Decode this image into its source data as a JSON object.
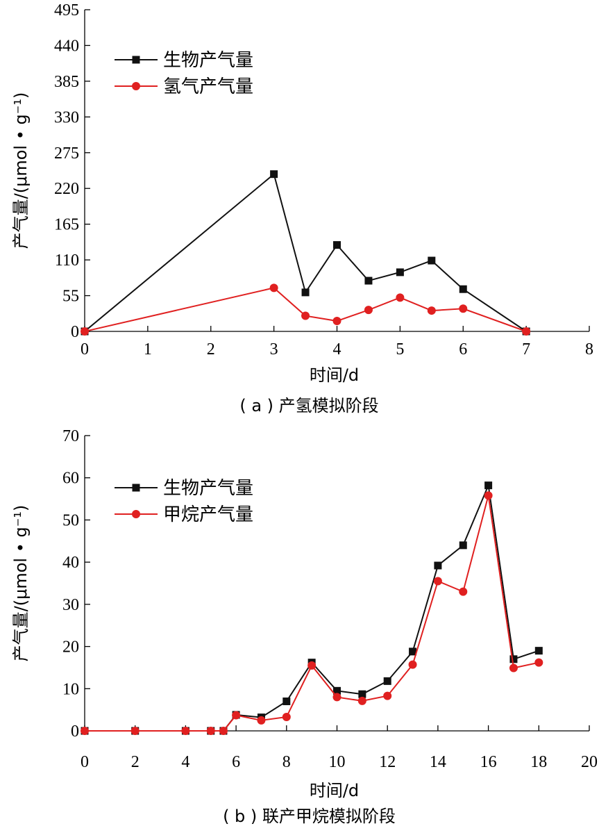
{
  "chart_data": [
    {
      "type": "line",
      "caption": "( a ) 产氢模拟阶段",
      "xlabel": "时间/d",
      "ylabel": "产气量/(μmol • g⁻¹)",
      "xlim": [
        0,
        8
      ],
      "ylim": [
        0,
        495
      ],
      "xticks": [
        0,
        1,
        2,
        3,
        4,
        5,
        6,
        7,
        8
      ],
      "yticks": [
        0,
        55,
        110,
        165,
        220,
        275,
        330,
        385,
        440,
        495
      ],
      "legend_position": "top-left",
      "series": [
        {
          "name": "生物产气量",
          "color": "#111111",
          "marker": "square",
          "x": [
            0,
            3,
            3.5,
            4,
            4.5,
            5,
            5.5,
            6,
            7
          ],
          "y": [
            0,
            242,
            60,
            133,
            78,
            91,
            109,
            65,
            0
          ]
        },
        {
          "name": "氢气产气量",
          "color": "#e02020",
          "marker": "circle",
          "x": [
            0,
            3,
            3.5,
            4,
            4.5,
            5,
            5.5,
            6,
            7
          ],
          "y": [
            0,
            67,
            24,
            16,
            33,
            52,
            32,
            35,
            0
          ]
        }
      ]
    },
    {
      "type": "line",
      "caption": "( b ) 联产甲烷模拟阶段",
      "xlabel": "时间/d",
      "ylabel": "产气量/(μmol • g⁻¹)",
      "xlim": [
        0,
        20
      ],
      "ylim": [
        0,
        70
      ],
      "xticks": [
        0,
        2,
        4,
        6,
        8,
        10,
        12,
        14,
        16,
        18,
        20
      ],
      "yticks": [
        0,
        10,
        20,
        30,
        40,
        50,
        60,
        70
      ],
      "legend_position": "top-left",
      "series": [
        {
          "name": "生物产气量",
          "color": "#111111",
          "marker": "square",
          "x": [
            0,
            2,
            4,
            5,
            5.5,
            6,
            7,
            8,
            9,
            10,
            11,
            12,
            13,
            14,
            15,
            16,
            17,
            18
          ],
          "y": [
            0,
            0,
            0,
            0,
            0,
            3.8,
            3.2,
            7,
            16.2,
            9.5,
            8.7,
            11.8,
            18.8,
            39.2,
            44,
            58.2,
            17,
            19
          ]
        },
        {
          "name": "甲烷产气量",
          "color": "#e02020",
          "marker": "circle",
          "x": [
            0,
            2,
            4,
            5,
            5.5,
            6,
            7,
            8,
            9,
            10,
            11,
            12,
            13,
            14,
            15,
            16,
            17,
            18
          ],
          "y": [
            0,
            0,
            0,
            0,
            0,
            3.7,
            2.5,
            3.3,
            15.5,
            8,
            7.1,
            8.3,
            15.7,
            35.5,
            33,
            55.8,
            14.9,
            16.2
          ]
        }
      ]
    }
  ]
}
